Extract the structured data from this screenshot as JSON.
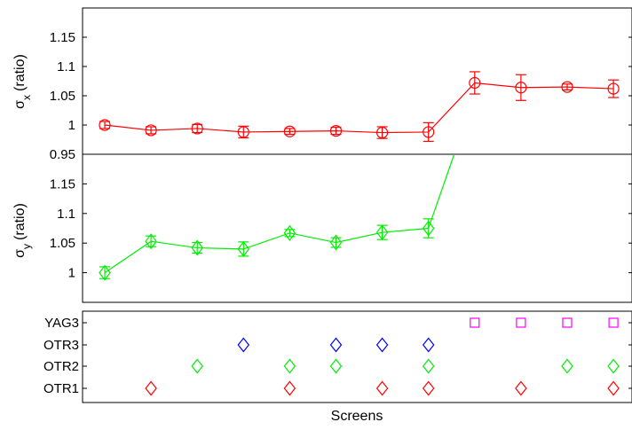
{
  "chart_data": [
    {
      "type": "line",
      "ylabel": {
        "symbol": "σ",
        "subscript": "x",
        "unit": "(ratio)"
      },
      "ylim": [
        0.95,
        1.2
      ],
      "yticks": [
        "0.95",
        "1",
        "1.05",
        "1.1",
        "1.15"
      ],
      "x": [
        1,
        2,
        3,
        4,
        5,
        6,
        7,
        8,
        9,
        10,
        11,
        12
      ],
      "series": [
        {
          "marker": "circle",
          "color": "#ff0000",
          "values": [
            1.0,
            0.991,
            0.994,
            0.988,
            0.989,
            0.99,
            0.987,
            0.988,
            1.072,
            1.064,
            1.065,
            1.062
          ],
          "errors": [
            0.006,
            0.006,
            0.007,
            0.01,
            0.005,
            0.006,
            0.01,
            0.016,
            0.019,
            0.022,
            0.005,
            0.015
          ]
        }
      ]
    },
    {
      "type": "line",
      "ylabel": {
        "symbol": "σ",
        "subscript": "y",
        "unit": "(ratio)"
      },
      "ylim": [
        0.95,
        1.2
      ],
      "yticks": [
        "1",
        "1.05",
        "1.1",
        "1.15"
      ],
      "x": [
        1,
        2,
        3,
        4,
        5,
        6,
        7,
        8,
        9
      ],
      "series": [
        {
          "marker": "diamond",
          "color": "#00ee00",
          "values": [
            1.0,
            1.053,
            1.042,
            1.04,
            1.067,
            1.051,
            1.068,
            1.075,
            1.3
          ],
          "errors": [
            0.01,
            0.009,
            0.009,
            0.012,
            0.006,
            0.008,
            0.012,
            0.016,
            null
          ]
        }
      ]
    },
    {
      "type": "scatter",
      "xlabel": "Screens",
      "categories": [
        "YAG3",
        "OTR3",
        "OTR2",
        "OTR1"
      ],
      "series": [
        {
          "category": "YAG3",
          "marker": "square",
          "color": "#ff00ff",
          "x": [
            9,
            10,
            11,
            12
          ]
        },
        {
          "category": "OTR3",
          "marker": "diamond",
          "color": "#0000ff",
          "x": [
            4,
            6,
            7,
            8
          ]
        },
        {
          "category": "OTR2",
          "marker": "diamond",
          "color": "#00ee00",
          "x": [
            3,
            5,
            6,
            8,
            11,
            12
          ]
        },
        {
          "category": "OTR1",
          "marker": "diamond",
          "color": "#ff0000",
          "x": [
            2,
            5,
            7,
            8,
            10,
            12
          ]
        }
      ]
    }
  ]
}
